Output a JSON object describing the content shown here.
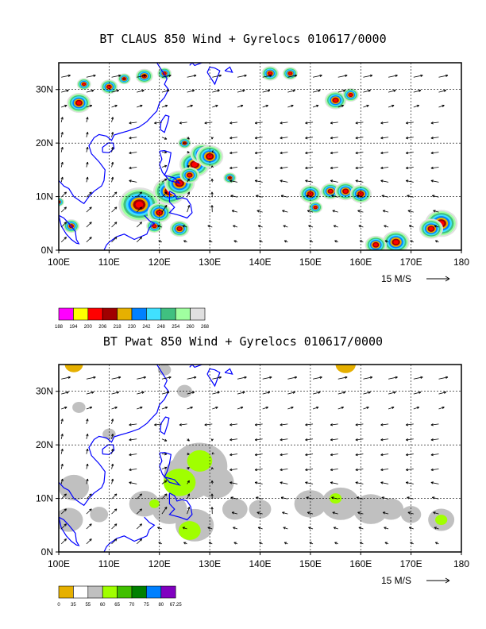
{
  "panels": [
    {
      "title": "BT CLAUS 850 Wind + Gyrelocs 010617/0000",
      "lon_labels": [
        "100E",
        "110E",
        "120E",
        "130E",
        "140E",
        "150E",
        "160E",
        "170E",
        "180"
      ],
      "lat_labels": [
        "30N",
        "20N",
        "10N",
        "0N"
      ],
      "vector_ref": "15 M/S",
      "legend": {
        "colors": [
          "#ff00ff",
          "#ffff00",
          "#ff0000",
          "#a00000",
          "#e6b000",
          "#0080ff",
          "#40e0ff",
          "#40c080",
          "#a0ffa0",
          "#e0e0e0"
        ],
        "ticks": [
          "188",
          "194",
          "200",
          "206",
          "218",
          "230",
          "242",
          "248",
          "254",
          "260",
          "268"
        ]
      }
    },
    {
      "title": "BT Pwat 850 Wind + Gyrelocs 010617/0000",
      "lon_labels": [
        "100E",
        "110E",
        "120E",
        "130E",
        "140E",
        "150E",
        "160E",
        "170E",
        "180"
      ],
      "lat_labels": [
        "30N",
        "20N",
        "10N",
        "0N"
      ],
      "vector_ref": "15 M/S",
      "legend": {
        "colors": [
          "#e6b000",
          "#ffffff",
          "#c0c0c0",
          "#a0ff00",
          "#40c000",
          "#008000",
          "#0080ff",
          "#8000c0"
        ],
        "ticks": [
          "0",
          "35",
          "55",
          "60",
          "65",
          "70",
          "75",
          "80",
          "67.25"
        ]
      }
    }
  ]
}
